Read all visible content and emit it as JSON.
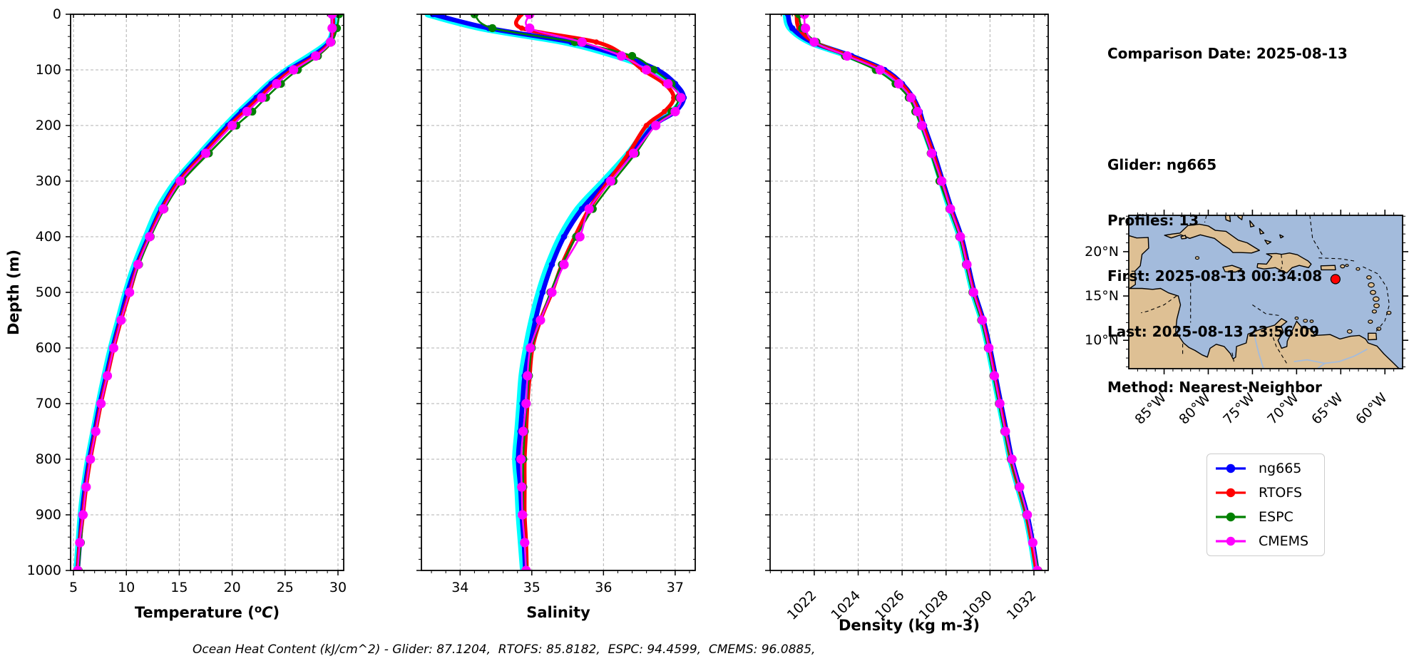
{
  "info": {
    "title": "Comparison Date: 2025-08-13",
    "lines": [
      "Glider: ng665",
      "Profiles: 13",
      "First: 2025-08-13 00:34:08",
      "Last: 2025-08-13 23:56:09",
      "Method: Nearest-Neighbor"
    ]
  },
  "caption": "Ocean Heat Content (kJ/cm^2) - Glider: 87.1204,  RTOFS: 85.8182,  ESPC: 94.4599,  CMEMS: 96.0885,",
  "legend": {
    "items": [
      {
        "label": "ng665",
        "color": "#0000ff"
      },
      {
        "label": "RTOFS",
        "color": "#ff0000"
      },
      {
        "label": "ESPC",
        "color": "#008000"
      },
      {
        "label": "CMEMS",
        "color": "#ff00ff"
      }
    ]
  },
  "colors": {
    "glider_raw": "#00ffff",
    "ng665": "#0000ff",
    "rtofs": "#ff0000",
    "espc": "#008000",
    "cmems": "#ff00ff",
    "grid": "#b0b0b0",
    "ocean": "#a3bbdc",
    "land": "#dec094",
    "marker": "#ff0000"
  },
  "chart_data": [
    {
      "type": "line",
      "xlabel": "Temperature (°C)",
      "ylabel": "Depth (m)",
      "xlim": [
        4.73,
        30.54
      ],
      "ylim": [
        1000,
        0
      ],
      "xticks": [
        5,
        10,
        15,
        20,
        25,
        30
      ],
      "yticks": [
        0,
        100,
        200,
        300,
        400,
        500,
        600,
        700,
        800,
        900,
        1000
      ],
      "grid": true,
      "depths": [
        0,
        25,
        50,
        75,
        100,
        125,
        150,
        175,
        200,
        250,
        300,
        350,
        400,
        450,
        500,
        550,
        600,
        650,
        700,
        750,
        800,
        850,
        900,
        950,
        1000
      ],
      "series": [
        {
          "name": "glider-raw",
          "in_legend": false,
          "values": [
            29.6,
            29.55,
            29.1,
            27.3,
            25.2,
            23.5,
            22.1,
            20.7,
            19.4,
            17.0,
            14.7,
            13.0,
            11.85,
            10.8,
            9.95,
            9.25,
            8.55,
            7.95,
            7.4,
            6.9,
            6.4,
            6.0,
            5.7,
            5.5,
            5.3
          ]
        },
        {
          "name": "ng665",
          "in_legend": true,
          "values": [
            29.5,
            29.5,
            29.2,
            27.6,
            25.4,
            23.7,
            22.3,
            20.9,
            19.6,
            17.2,
            14.9,
            13.3,
            12.1,
            11.0,
            10.1,
            9.4,
            8.7,
            8.1,
            7.5,
            7.0,
            6.5,
            6.1,
            5.8,
            5.6,
            5.4
          ]
        },
        {
          "name": "RTOFS",
          "in_legend": true,
          "values": [
            29.5,
            29.5,
            29.3,
            27.9,
            25.7,
            24.0,
            22.6,
            21.2,
            19.8,
            17.4,
            15.0,
            13.4,
            12.2,
            11.1,
            10.3,
            9.5,
            8.8,
            8.2,
            7.6,
            7.1,
            6.6,
            6.2,
            5.9,
            5.6,
            5.4
          ]
        },
        {
          "name": "ESPC",
          "in_legend": true,
          "values": [
            30.1,
            29.9,
            29.4,
            28.1,
            26.2,
            24.6,
            23.2,
            21.9,
            20.4,
            17.8,
            15.3,
            13.6,
            12.3,
            11.2,
            10.3,
            9.5,
            8.8,
            8.2,
            7.6,
            7.1,
            6.6,
            6.2,
            5.9,
            5.7,
            5.5
          ]
        },
        {
          "name": "CMEMS",
          "in_legend": true,
          "values": [
            29.45,
            29.45,
            29.3,
            27.9,
            25.8,
            24.2,
            22.8,
            21.4,
            20.0,
            17.5,
            15.1,
            13.5,
            12.2,
            11.1,
            10.3,
            9.5,
            8.8,
            8.2,
            7.6,
            7.1,
            6.6,
            6.2,
            5.9,
            5.6,
            5.4
          ]
        }
      ]
    },
    {
      "type": "line",
      "xlabel": "Salinity",
      "ylabel": "Depth (m)",
      "xlim": [
        33.46,
        37.28
      ],
      "ylim": [
        1000,
        0
      ],
      "xticks": [
        34,
        35,
        36,
        37
      ],
      "yticks": [
        0,
        100,
        200,
        300,
        400,
        500,
        600,
        700,
        800,
        900,
        1000
      ],
      "grid": true,
      "depths": [
        0,
        25,
        50,
        75,
        100,
        125,
        150,
        175,
        200,
        250,
        300,
        350,
        400,
        450,
        500,
        550,
        600,
        650,
        700,
        750,
        800,
        850,
        900,
        950,
        1000
      ],
      "series": [
        {
          "name": "glider-raw",
          "in_legend": false,
          "values": [
            33.55,
            34.3,
            35.45,
            36.18,
            36.7,
            36.97,
            37.1,
            36.96,
            36.65,
            36.35,
            36.0,
            35.64,
            35.4,
            35.23,
            35.1,
            35.0,
            34.92,
            34.86,
            34.83,
            34.8,
            34.77,
            34.8,
            34.82,
            34.85,
            34.88
          ]
        },
        {
          "name": "ng665",
          "in_legend": true,
          "values": [
            33.62,
            34.4,
            35.55,
            36.25,
            36.75,
            37.0,
            37.12,
            37.0,
            36.7,
            36.4,
            36.05,
            35.7,
            35.45,
            35.28,
            35.15,
            35.05,
            34.97,
            34.9,
            34.87,
            34.84,
            34.81,
            34.84,
            34.86,
            34.89,
            34.91
          ]
        },
        {
          "name": "RTOFS",
          "in_legend": true,
          "values": [
            34.85,
            34.86,
            35.9,
            36.3,
            36.55,
            36.85,
            36.98,
            36.85,
            36.6,
            36.35,
            36.07,
            35.8,
            35.6,
            35.42,
            35.28,
            35.12,
            35.01,
            34.97,
            34.94,
            34.92,
            34.9,
            34.9,
            34.9,
            34.92,
            34.93
          ]
        },
        {
          "name": "ESPC",
          "in_legend": true,
          "values": [
            34.2,
            34.45,
            35.6,
            36.4,
            36.7,
            36.95,
            37.05,
            36.95,
            36.72,
            36.45,
            36.14,
            35.85,
            35.62,
            35.42,
            35.26,
            35.12,
            35.0,
            34.96,
            34.93,
            34.9,
            34.88,
            34.88,
            34.88,
            34.9,
            34.93
          ]
        },
        {
          "name": "CMEMS",
          "in_legend": true,
          "values": [
            34.97,
            34.97,
            35.7,
            36.25,
            36.6,
            36.9,
            37.08,
            37.0,
            36.73,
            36.42,
            36.1,
            35.8,
            35.67,
            35.45,
            35.28,
            35.12,
            34.98,
            34.94,
            34.92,
            34.88,
            34.85,
            34.86,
            34.87,
            34.9,
            34.92
          ]
        }
      ]
    },
    {
      "type": "line",
      "xlabel": "Density (kg m-3)",
      "ylabel": "Depth (m)",
      "xlim": [
        1019.99,
        1032.65
      ],
      "ylim": [
        1000,
        0
      ],
      "xticks": [
        1022,
        1024,
        1026,
        1028,
        1030,
        1032
      ],
      "yticks": [
        0,
        100,
        200,
        300,
        400,
        500,
        600,
        700,
        800,
        900,
        1000
      ],
      "grid": true,
      "depths": [
        0,
        25,
        50,
        75,
        100,
        125,
        150,
        175,
        200,
        250,
        300,
        350,
        400,
        450,
        500,
        550,
        600,
        650,
        700,
        750,
        800,
        850,
        900,
        950,
        1000
      ],
      "series": [
        {
          "name": "glider-raw",
          "in_legend": false,
          "values": [
            1020.7,
            1020.9,
            1021.8,
            1023.6,
            1025.1,
            1025.9,
            1026.42,
            1026.72,
            1026.93,
            1027.38,
            1027.78,
            1028.18,
            1028.63,
            1028.93,
            1029.23,
            1029.63,
            1029.93,
            1030.18,
            1030.43,
            1030.68,
            1030.93,
            1031.28,
            1031.63,
            1031.88,
            1032.08
          ]
        },
        {
          "name": "ng665",
          "in_legend": true,
          "values": [
            1020.8,
            1021.0,
            1021.9,
            1023.7,
            1025.2,
            1026.0,
            1026.5,
            1026.8,
            1027.0,
            1027.45,
            1027.85,
            1028.25,
            1028.7,
            1029.0,
            1029.3,
            1029.7,
            1030.0,
            1030.25,
            1030.5,
            1030.75,
            1031.0,
            1031.35,
            1031.7,
            1031.95,
            1032.15
          ]
        },
        {
          "name": "RTOFS",
          "in_legend": true,
          "values": [
            1021.2,
            1021.3,
            1022.0,
            1023.6,
            1025.1,
            1025.95,
            1026.45,
            1026.75,
            1026.95,
            1027.4,
            1027.8,
            1028.2,
            1028.65,
            1028.95,
            1029.25,
            1029.65,
            1029.95,
            1030.2,
            1030.45,
            1030.7,
            1030.95,
            1031.3,
            1031.65,
            1031.9,
            1032.1
          ]
        },
        {
          "name": "ESPC",
          "in_legend": true,
          "values": [
            1021.3,
            1021.45,
            1022.1,
            1023.4,
            1024.8,
            1025.7,
            1026.3,
            1026.6,
            1026.85,
            1027.3,
            1027.7,
            1028.15,
            1028.6,
            1028.9,
            1029.2,
            1029.6,
            1029.9,
            1030.15,
            1030.4,
            1030.65,
            1030.95,
            1031.3,
            1031.65,
            1031.95,
            1032.2
          ]
        },
        {
          "name": "CMEMS",
          "in_legend": true,
          "values": [
            1021.55,
            1021.6,
            1022.0,
            1023.5,
            1025.0,
            1025.85,
            1026.4,
            1026.7,
            1026.9,
            1027.35,
            1027.8,
            1028.2,
            1028.65,
            1028.95,
            1029.25,
            1029.65,
            1029.95,
            1030.2,
            1030.45,
            1030.7,
            1031.0,
            1031.35,
            1031.7,
            1031.95,
            1032.15
          ]
        }
      ]
    }
  ],
  "map": {
    "extent": {
      "lon": [
        -89,
        -58
      ],
      "lat": [
        6.8,
        24.1
      ]
    },
    "lon_ticks": [
      -85,
      -80,
      -75,
      -70,
      -65,
      -60
    ],
    "lon_labels": [
      "85°W",
      "80°W",
      "75°W",
      "70°W",
      "65°W",
      "60°W"
    ],
    "lat_ticks": [
      20,
      15,
      10
    ],
    "lat_labels": [
      "20°N",
      "15°N",
      "10°N"
    ],
    "marker": {
      "lon": -65.6,
      "lat": 16.9
    }
  }
}
